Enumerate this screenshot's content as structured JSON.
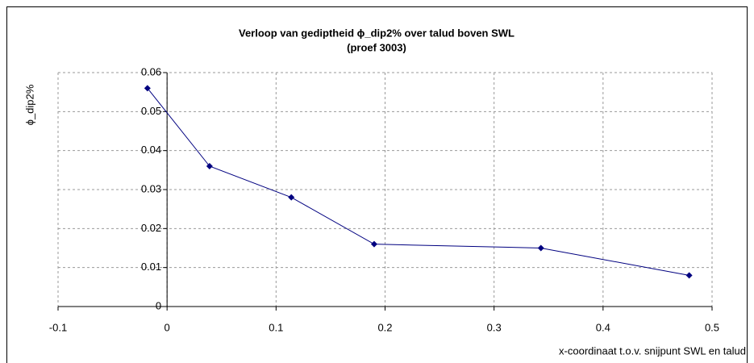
{
  "chart_data": {
    "type": "scatter",
    "title": "Verloop van gediptheid ϕ_dip2% over talud boven SWL",
    "subtitle": "(proef 3003)",
    "x_label": "x-coordinaat t.o.v. snijpunt SWL en talud",
    "y_label": "ϕ_dip2%",
    "series": [
      {
        "name": "ϕ_dip2%",
        "color": "#000080",
        "x": [
          -0.018,
          0.039,
          0.114,
          0.19,
          0.343,
          0.479
        ],
        "values": [
          0.056,
          0.036,
          0.028,
          0.016,
          0.015,
          0.008
        ]
      }
    ],
    "xlim": [
      -0.1,
      0.5
    ],
    "xticks": [
      -0.1,
      0,
      0.1,
      0.2,
      0.3,
      0.4,
      0.5
    ],
    "ylim": [
      0,
      0.06
    ],
    "yticks": [
      0,
      0.01,
      0.02,
      0.03,
      0.04,
      0.05,
      0.06
    ],
    "grid": true
  }
}
